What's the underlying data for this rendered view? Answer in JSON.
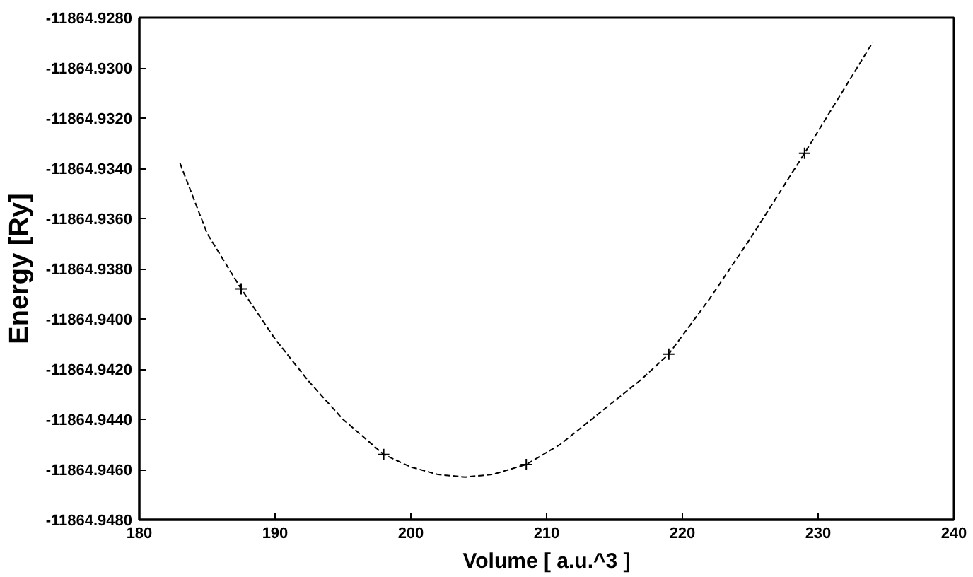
{
  "chart_data": {
    "type": "line",
    "xlabel": "Volume [ a.u.^3 ]",
    "ylabel": "Energy [Ry]",
    "xlim": [
      180,
      240
    ],
    "xticks": [
      180,
      190,
      200,
      210,
      220,
      230,
      240
    ],
    "ylim": [
      -11864.948,
      -11864.928
    ],
    "yticks": [
      {
        "value": -11864.948,
        "label": "-11864.9480"
      },
      {
        "value": -11864.946,
        "label": "-11864.9460"
      },
      {
        "value": -11864.944,
        "label": "-11864.9440"
      },
      {
        "value": -11864.942,
        "label": "-11864.9420"
      },
      {
        "value": -11864.94,
        "label": "-11864.9400"
      },
      {
        "value": -11864.938,
        "label": "-11864.9380"
      },
      {
        "value": -11864.936,
        "label": "-11864.9360"
      },
      {
        "value": -11864.934,
        "label": "-11864.9340"
      },
      {
        "value": -11864.932,
        "label": "-11864.9320"
      },
      {
        "value": -11864.93,
        "label": "-11864.9300"
      },
      {
        "value": -11864.928,
        "label": "-11864.9280"
      }
    ],
    "grid": false,
    "series": [
      {
        "color": "#000000",
        "line_style": "dashed",
        "marker": "none",
        "x": [
          183,
          185,
          187.5,
          190,
          192.5,
          195,
          198,
          200,
          202,
          204,
          206,
          208.5,
          211,
          214,
          217,
          219,
          222,
          225,
          229,
          231.5,
          234
        ],
        "values": [
          -11864.9338,
          -11864.9366,
          -11864.9388,
          -11864.9408,
          -11864.9425,
          -11864.944,
          -11864.9454,
          -11864.9459,
          -11864.9462,
          -11864.9463,
          -11864.9462,
          -11864.9458,
          -11864.945,
          -11864.9437,
          -11864.9424,
          -11864.9414,
          -11864.9392,
          -11864.9368,
          -11864.9334,
          -11864.9312,
          -11864.929
        ]
      },
      {
        "type": "scatter",
        "color": "#000000",
        "marker": "cross",
        "x": [
          187.5,
          198,
          208.5,
          219,
          229
        ],
        "values": [
          -11864.9388,
          -11864.9454,
          -11864.9458,
          -11864.9414,
          -11864.9334
        ]
      }
    ]
  }
}
